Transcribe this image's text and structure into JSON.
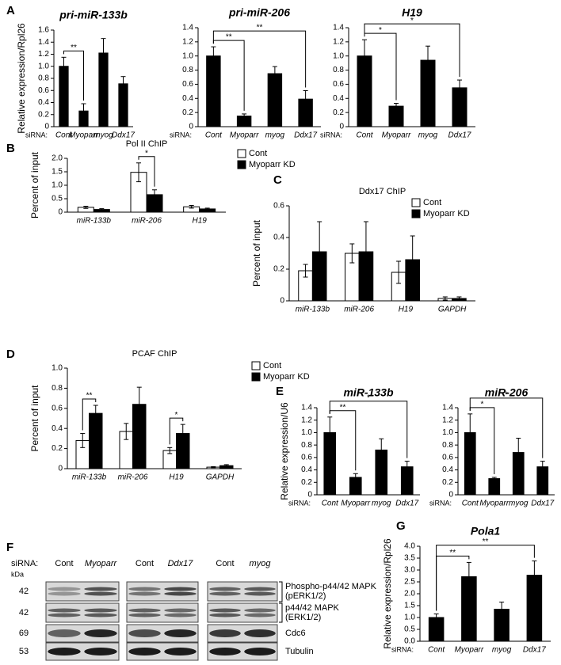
{
  "chart_data": [
    {
      "type": "bar",
      "panel": "A",
      "title": "pri-miR-133b",
      "title_style": "italic",
      "ylabel": "Relative expression/Rpl26",
      "x_label": "siRNA:",
      "categories": [
        "Cont",
        "Myoparr",
        "myog",
        "Ddx17"
      ],
      "series": [
        {
          "color": "#000000",
          "values": [
            1.0,
            0.26,
            1.22,
            0.71
          ],
          "errors": [
            0.15,
            0.12,
            0.24,
            0.12
          ]
        }
      ],
      "ylim": [
        0,
        1.6
      ],
      "yticks": [
        0,
        0.2,
        0.4,
        0.6,
        0.8,
        {
          "value": 1,
          "label": "1.0"
        },
        1.2,
        1.4,
        1.6
      ],
      "significance": [
        {
          "categories": [
            "Cont",
            "Myoparr"
          ],
          "label": "**"
        }
      ]
    },
    {
      "type": "bar",
      "title": "pri-miR-206",
      "title_style": "italic",
      "x_label": "siRNA:",
      "categories": [
        "Cont",
        "Myoparr",
        "myog",
        "Ddx17"
      ],
      "series": [
        {
          "color": "#000000",
          "values": [
            1.0,
            0.15,
            0.75,
            0.39
          ],
          "errors": [
            0.13,
            0.03,
            0.1,
            0.12
          ]
        }
      ],
      "ylim": [
        0,
        1.4
      ],
      "yticks": [
        0,
        0.2,
        0.4,
        0.6,
        0.8,
        {
          "value": 1,
          "label": "1.0"
        },
        1.2,
        1.4
      ],
      "significance": [
        {
          "categories": [
            "Cont",
            "Myoparr"
          ],
          "label": "**"
        },
        {
          "categories": [
            "Cont",
            "Ddx17"
          ],
          "label": "**"
        }
      ]
    },
    {
      "type": "bar",
      "title": "H19",
      "title_style": "italic",
      "x_label": "siRNA:",
      "categories": [
        "Cont",
        "Myoparr",
        "myog",
        "Ddx17"
      ],
      "series": [
        {
          "color": "#000000",
          "values": [
            1.0,
            0.29,
            0.94,
            0.55
          ],
          "errors": [
            0.23,
            0.04,
            0.2,
            0.11
          ]
        }
      ],
      "ylim": [
        0,
        1.4
      ],
      "yticks": [
        0,
        0.2,
        0.4,
        0.6,
        0.8,
        {
          "value": 1,
          "label": "1.0"
        },
        1.2,
        1.4
      ],
      "significance": [
        {
          "categories": [
            "Cont",
            "Myoparr"
          ],
          "label": "*"
        },
        {
          "categories": [
            "Cont",
            "Ddx17"
          ],
          "label": "*"
        }
      ]
    },
    {
      "type": "bar",
      "panel": "B",
      "title": "Pol II ChIP",
      "ylabel": "Percent of input",
      "categories": [
        "miR-133b",
        "miR-206",
        "H19"
      ],
      "series": [
        {
          "name": "Cont",
          "color": "#ffffff",
          "values": [
            0.18,
            1.48,
            0.2
          ],
          "errors": [
            0.04,
            0.35,
            0.05
          ]
        },
        {
          "name": "Myoparr KD",
          "color": "#000000",
          "values": [
            0.1,
            0.65,
            0.12
          ],
          "errors": [
            0.03,
            0.18,
            0.03
          ]
        }
      ],
      "ylim": [
        0,
        2
      ],
      "yticks": [
        0,
        0.5,
        {
          "value": 1,
          "label": "1.0"
        },
        1.5,
        {
          "value": 2,
          "label": "2.0"
        }
      ],
      "significance": [
        {
          "category": "miR-206",
          "label": "*"
        }
      ]
    },
    {
      "type": "bar",
      "panel": "C",
      "title": "Ddx17 ChIP",
      "ylabel": "Percent of input",
      "categories": [
        "miR-133b",
        "miR-206",
        "H19",
        "GAPDH"
      ],
      "series": [
        {
          "name": "Cont",
          "color": "#ffffff",
          "values": [
            0.19,
            0.3,
            0.18,
            0.015
          ],
          "errors": [
            0.04,
            0.06,
            0.07,
            0.01
          ]
        },
        {
          "name": "Myoparr KD",
          "color": "#000000",
          "values": [
            0.31,
            0.31,
            0.26,
            0.015
          ],
          "errors": [
            0.19,
            0.19,
            0.15,
            0.01
          ]
        }
      ],
      "ylim": [
        0,
        0.6
      ],
      "yticks": [
        0,
        0.2,
        0.4,
        0.6
      ]
    },
    {
      "type": "bar",
      "panel": "D",
      "title": "PCAF ChIP",
      "ylabel": "Percent of input",
      "categories": [
        "miR-133b",
        "miR-206",
        "H19",
        "GAPDH"
      ],
      "series": [
        {
          "name": "Cont",
          "color": "#ffffff",
          "values": [
            0.28,
            0.37,
            0.18,
            0.015
          ],
          "errors": [
            0.07,
            0.08,
            0.03,
            0.005
          ]
        },
        {
          "name": "Myoparr KD",
          "color": "#000000",
          "values": [
            0.55,
            0.64,
            0.35,
            0.03
          ],
          "errors": [
            0.08,
            0.17,
            0.09,
            0.01
          ]
        }
      ],
      "ylim": [
        0,
        1
      ],
      "yticks": [
        0,
        0.2,
        0.4,
        0.6,
        0.8,
        {
          "value": 1,
          "label": "1.0"
        }
      ],
      "significance": [
        {
          "category": "miR-133b",
          "label": "**"
        },
        {
          "category": "H19",
          "label": "*"
        }
      ]
    },
    {
      "type": "bar",
      "panel": "E",
      "title": "miR-133b",
      "title_style": "italic",
      "ylabel": "Relative expression/U6",
      "x_label": "siRNA:",
      "categories": [
        "Cont",
        "Myoparr",
        "myog",
        "Ddx17"
      ],
      "series": [
        {
          "color": "#000000",
          "values": [
            1.0,
            0.28,
            0.72,
            0.45
          ],
          "errors": [
            0.25,
            0.06,
            0.18,
            0.09
          ]
        }
      ],
      "ylim": [
        0,
        1.4
      ],
      "yticks": [
        0,
        0.2,
        0.4,
        0.6,
        0.8,
        {
          "value": 1,
          "label": "1.0"
        },
        1.2,
        1.4
      ],
      "significance": [
        {
          "categories": [
            "Cont",
            "Myoparr"
          ],
          "label": "**"
        },
        {
          "categories": [
            "Cont",
            "Ddx17"
          ],
          "label": "*"
        }
      ]
    },
    {
      "type": "bar",
      "title": "miR-206",
      "title_style": "italic",
      "x_label": "siRNA:",
      "categories": [
        "Cont",
        "Myoparr",
        "myog",
        "Ddx17"
      ],
      "series": [
        {
          "color": "#000000",
          "values": [
            1.0,
            0.26,
            0.68,
            0.45
          ],
          "errors": [
            0.3,
            0.02,
            0.23,
            0.09
          ]
        }
      ],
      "ylim": [
        0,
        1.4
      ],
      "yticks": [
        0,
        0.2,
        0.4,
        0.6,
        0.8,
        {
          "value": 1,
          "label": "1.0"
        },
        1.2,
        1.4
      ],
      "significance": [
        {
          "categories": [
            "Cont",
            "Myoparr"
          ],
          "label": "*"
        },
        {
          "categories": [
            "Cont",
            "Ddx17"
          ],
          "label": "*"
        }
      ]
    },
    {
      "type": "bar",
      "panel": "G",
      "title": "Pola1",
      "title_style": "italic",
      "ylabel": "Relative expression/Rpl26",
      "x_label": "siRNA:",
      "categories": [
        "Cont",
        "Myoparr",
        "myog",
        "Ddx17"
      ],
      "series": [
        {
          "color": "#000000",
          "values": [
            1.0,
            2.72,
            1.35,
            2.78
          ],
          "errors": [
            0.15,
            0.6,
            0.3,
            0.6
          ]
        }
      ],
      "ylim": [
        0,
        4
      ],
      "yticks": [
        {
          "value": 0,
          "label": "0.0"
        },
        0.5,
        {
          "value": 1,
          "label": "1.0"
        },
        1.5,
        {
          "value": 2,
          "label": "2.0"
        },
        2.5,
        {
          "value": 3,
          "label": "3.0"
        },
        3.5,
        {
          "value": 4,
          "label": "4.0"
        }
      ],
      "significance": [
        {
          "categories": [
            "Cont",
            "Myoparr"
          ],
          "label": "**"
        },
        {
          "categories": [
            "Cont",
            "Ddx17"
          ],
          "label": "**"
        }
      ]
    }
  ],
  "blot": {
    "panel": "F",
    "sirna_label": "siRNA:",
    "lanes": [
      [
        "Cont",
        "Myoparr"
      ],
      [
        "Cont",
        "Ddx17"
      ],
      [
        "Cont",
        "myog"
      ]
    ],
    "kda_label": "kDa",
    "sizes": [
      42,
      42,
      69,
      53
    ],
    "targets": [
      [
        "Phospho-p44/42 MAPK",
        "(pERK1/2)"
      ],
      [
        "p44/42 MAPK",
        "(ERK1/2)"
      ],
      [
        "Cdc6"
      ],
      [
        "Tubulin"
      ]
    ]
  }
}
